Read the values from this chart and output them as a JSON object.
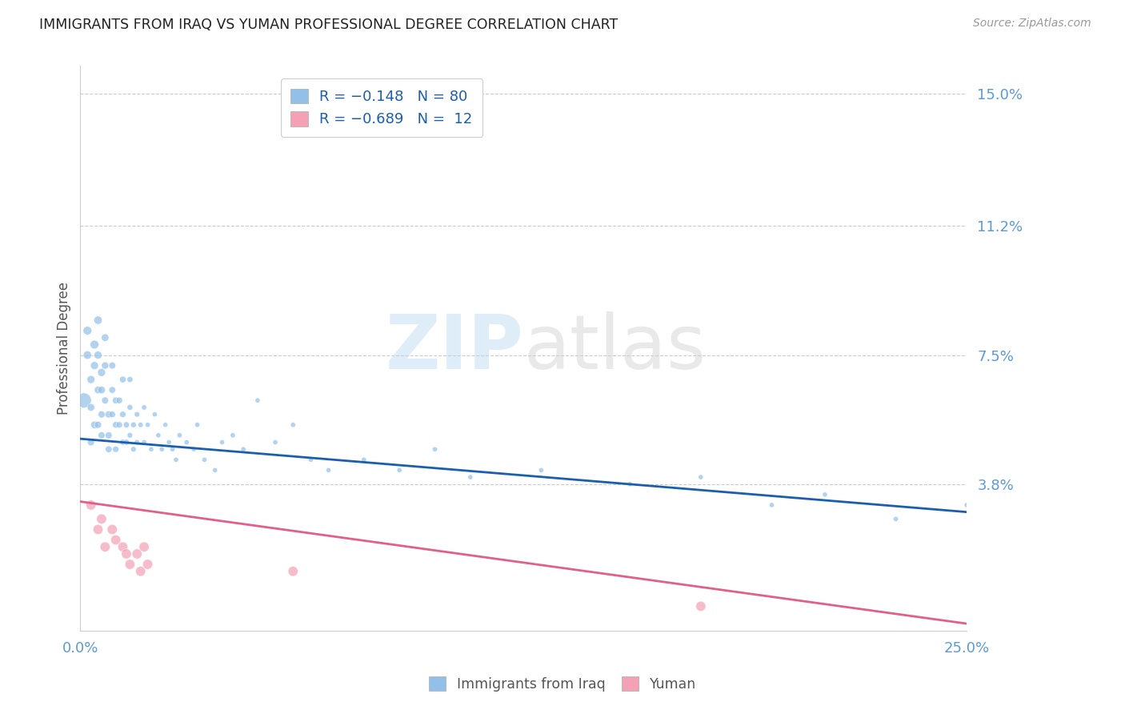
{
  "title": "IMMIGRANTS FROM IRAQ VS YUMAN PROFESSIONAL DEGREE CORRELATION CHART",
  "source": "Source: ZipAtlas.com",
  "ylabel": "Professional Degree",
  "ytick_labels": [
    "15.0%",
    "11.2%",
    "7.5%",
    "3.8%"
  ],
  "ytick_values": [
    0.15,
    0.112,
    0.075,
    0.038
  ],
  "xmin": 0.0,
  "xmax": 0.25,
  "ymin": -0.004,
  "ymax": 0.158,
  "color_blue": "#92c0e8",
  "color_pink": "#f4a0b5",
  "color_line_blue": "#1a5fad",
  "color_line_pink": "#e0608a",
  "color_tick_label": "#5b9bd5",
  "iraq_line_x0": 0.0,
  "iraq_line_y0": 0.051,
  "iraq_line_x1": 0.25,
  "iraq_line_y1": 0.03,
  "yuman_line_x0": 0.0,
  "yuman_line_y0": 0.033,
  "yuman_line_x1": 0.25,
  "yuman_line_y1": -0.002,
  "iraq_x": [
    0.001,
    0.002,
    0.002,
    0.003,
    0.003,
    0.003,
    0.004,
    0.004,
    0.004,
    0.005,
    0.005,
    0.005,
    0.005,
    0.006,
    0.006,
    0.006,
    0.006,
    0.007,
    0.007,
    0.007,
    0.008,
    0.008,
    0.008,
    0.009,
    0.009,
    0.009,
    0.01,
    0.01,
    0.01,
    0.011,
    0.011,
    0.012,
    0.012,
    0.012,
    0.013,
    0.013,
    0.014,
    0.014,
    0.014,
    0.015,
    0.015,
    0.016,
    0.016,
    0.017,
    0.018,
    0.018,
    0.019,
    0.02,
    0.021,
    0.022,
    0.023,
    0.024,
    0.025,
    0.026,
    0.027,
    0.028,
    0.03,
    0.032,
    0.033,
    0.035,
    0.038,
    0.04,
    0.043,
    0.046,
    0.05,
    0.055,
    0.06,
    0.065,
    0.07,
    0.08,
    0.09,
    0.1,
    0.11,
    0.13,
    0.155,
    0.175,
    0.195,
    0.21,
    0.23,
    0.25
  ],
  "iraq_y": [
    0.062,
    0.082,
    0.075,
    0.068,
    0.06,
    0.05,
    0.078,
    0.072,
    0.055,
    0.085,
    0.075,
    0.065,
    0.055,
    0.07,
    0.065,
    0.058,
    0.052,
    0.08,
    0.072,
    0.062,
    0.058,
    0.052,
    0.048,
    0.072,
    0.065,
    0.058,
    0.062,
    0.055,
    0.048,
    0.062,
    0.055,
    0.068,
    0.058,
    0.05,
    0.055,
    0.05,
    0.068,
    0.06,
    0.052,
    0.055,
    0.048,
    0.058,
    0.05,
    0.055,
    0.06,
    0.05,
    0.055,
    0.048,
    0.058,
    0.052,
    0.048,
    0.055,
    0.05,
    0.048,
    0.045,
    0.052,
    0.05,
    0.048,
    0.055,
    0.045,
    0.042,
    0.05,
    0.052,
    0.048,
    0.062,
    0.05,
    0.055,
    0.045,
    0.042,
    0.045,
    0.042,
    0.048,
    0.04,
    0.042,
    0.038,
    0.04,
    0.032,
    0.035,
    0.028,
    0.032
  ],
  "iraq_sizes": [
    180,
    60,
    55,
    50,
    45,
    40,
    60,
    50,
    45,
    55,
    50,
    45,
    40,
    50,
    45,
    40,
    38,
    45,
    42,
    38,
    40,
    38,
    36,
    38,
    36,
    34,
    36,
    34,
    32,
    34,
    32,
    34,
    32,
    30,
    30,
    28,
    28,
    26,
    24,
    26,
    24,
    24,
    22,
    22,
    22,
    20,
    20,
    20,
    20,
    20,
    20,
    20,
    20,
    20,
    20,
    20,
    20,
    20,
    20,
    20,
    20,
    20,
    20,
    20,
    20,
    20,
    20,
    20,
    20,
    20,
    20,
    20,
    20,
    20,
    20,
    20,
    20,
    20,
    20,
    20
  ],
  "yuman_x": [
    0.003,
    0.005,
    0.006,
    0.007,
    0.009,
    0.01,
    0.012,
    0.013,
    0.014,
    0.016,
    0.017,
    0.018,
    0.019,
    0.06,
    0.175
  ],
  "yuman_y": [
    0.032,
    0.025,
    0.028,
    0.02,
    0.025,
    0.022,
    0.02,
    0.018,
    0.015,
    0.018,
    0.013,
    0.02,
    0.015,
    0.013,
    0.003
  ],
  "yuman_sizes": [
    20,
    20,
    20,
    20,
    20,
    20,
    20,
    20,
    20,
    20,
    20,
    20,
    20,
    20,
    20
  ]
}
